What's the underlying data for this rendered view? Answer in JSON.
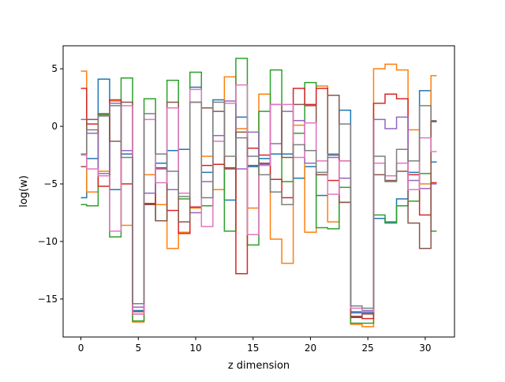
{
  "chart_data": {
    "type": "line",
    "drawstyle": "steps-mid",
    "title": "",
    "xlabel": "z dimension",
    "ylabel": "log(w)",
    "xlim": [
      -1.55,
      32.55
    ],
    "ylim": [
      -18.3,
      7.0
    ],
    "xticks": [
      0,
      5,
      10,
      15,
      20,
      25,
      30
    ],
    "yticks": [
      -15,
      -10,
      -5,
      0,
      5
    ],
    "x": [
      0,
      1,
      2,
      3,
      4,
      5,
      6,
      7,
      8,
      9,
      10,
      11,
      12,
      13,
      14,
      15,
      16,
      17,
      18,
      19,
      20,
      21,
      22,
      23,
      24,
      25,
      26,
      27,
      28,
      29,
      30,
      31
    ],
    "series": [
      {
        "color": "#1f77b4",
        "values": [
          -6.2,
          -2.8,
          4.1,
          -5.5,
          -2.4,
          -16.0,
          -6.8,
          -3.2,
          -2.1,
          -2.0,
          3.4,
          -4.0,
          2.3,
          -6.4,
          0.8,
          -3.5,
          -2.8,
          -2.4,
          -2.4,
          -4.5,
          -3.5,
          -6.0,
          -2.5,
          1.4,
          -16.2,
          -16.2,
          -8.0,
          -8.3,
          -6.3,
          -4.0,
          3.1,
          -3.1
        ]
      },
      {
        "color": "#ff7f0e",
        "values": [
          4.8,
          -5.7,
          -3.9,
          2.2,
          -8.6,
          -17.0,
          -4.2,
          -6.8,
          -10.6,
          -9.2,
          -7.1,
          -2.6,
          -5.5,
          4.3,
          -0.2,
          -7.1,
          2.8,
          -9.8,
          -11.9,
          0.1,
          -9.2,
          3.5,
          -8.3,
          -3.0,
          -17.2,
          -17.4,
          5.0,
          5.4,
          4.9,
          -0.3,
          -5.0,
          4.4
        ]
      },
      {
        "color": "#2ca02c",
        "values": [
          -6.8,
          -6.9,
          1.0,
          -9.6,
          4.2,
          -16.9,
          2.4,
          -8.2,
          4.0,
          -6.3,
          4.7,
          -6.9,
          -0.8,
          -9.1,
          5.9,
          -10.3,
          1.3,
          4.9,
          -4.8,
          -0.6,
          3.8,
          -8.8,
          -8.9,
          -5.3,
          -17.1,
          -17.1,
          -7.7,
          -8.4,
          -6.9,
          -6.5,
          -4.1,
          -9.1
        ]
      },
      {
        "color": "#d62728",
        "values": [
          3.3,
          0.2,
          -5.2,
          2.3,
          -5.0,
          -16.1,
          -6.7,
          -3.6,
          -7.3,
          -9.3,
          -7.0,
          -3.4,
          -3.3,
          -3.6,
          -12.8,
          -1.9,
          -2.5,
          -4.6,
          -6.2,
          3.3,
          1.9,
          3.3,
          -4.7,
          -6.6,
          -16.6,
          -16.7,
          2.0,
          2.8,
          2.4,
          -4.2,
          -7.7,
          -4.9
        ]
      },
      {
        "color": "#9467bd",
        "values": [
          0.6,
          -0.6,
          -4.1,
          2.0,
          -2.1,
          -15.7,
          -5.8,
          -3.7,
          -5.5,
          -5.8,
          -7.5,
          -4.8,
          -0.8,
          2.2,
          -3.7,
          -0.5,
          -3.3,
          -1.5,
          1.3,
          0.5,
          -3.2,
          -4.2,
          -2.7,
          -4.5,
          -16.1,
          -16.0,
          0.6,
          -0.2,
          0.8,
          -4.7,
          -5.4,
          -5.0
        ]
      },
      {
        "color": "#8c564b",
        "values": [
          -3.5,
          0.6,
          1.1,
          -1.3,
          2.1,
          -16.3,
          -6.8,
          -8.2,
          2.1,
          -8.3,
          2.1,
          1.6,
          1.3,
          -3.7,
          -0.5,
          -3.4,
          -3.2,
          1.9,
          -2.7,
          1.9,
          1.8,
          -4.2,
          2.7,
          -6.6,
          -16.5,
          -16.3,
          -4.2,
          -4.7,
          -3.9,
          -8.4,
          -10.6,
          0.4
        ]
      },
      {
        "color": "#e377c2",
        "values": [
          -2.5,
          -3.7,
          -4.3,
          -9.1,
          1.8,
          -16.3,
          0.6,
          -4.9,
          1.6,
          -5.8,
          3.2,
          -8.7,
          -1.3,
          2.0,
          3.6,
          -9.4,
          -3.4,
          1.9,
          1.9,
          -2.7,
          0.3,
          -3.0,
          -5.9,
          -3.0,
          -15.8,
          -16.1,
          -3.2,
          -4.3,
          -3.2,
          -5.5,
          -1.0,
          -2.2
        ]
      },
      {
        "color": "#7f7f7f",
        "values": [
          -2.4,
          -0.3,
          0.9,
          1.8,
          -2.7,
          -15.4,
          1.1,
          -2.4,
          -3.9,
          -6.1,
          2.1,
          -6.2,
          2.1,
          -2.6,
          -1.0,
          -2.6,
          -4.2,
          -5.7,
          -6.8,
          -1.6,
          -2.1,
          -4.0,
          -2.4,
          0.2,
          -15.6,
          -15.8,
          -2.6,
          -4.8,
          -2.0,
          -3.0,
          1.8,
          0.5
        ]
      }
    ]
  }
}
